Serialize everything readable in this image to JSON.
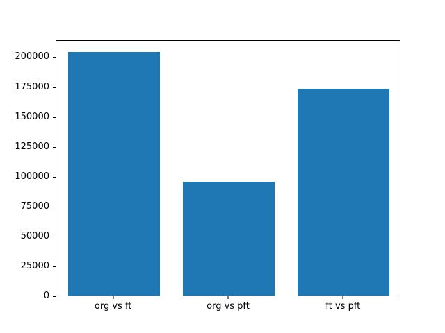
{
  "chart_data": {
    "type": "bar",
    "categories": [
      "org vs ft",
      "org vs pft",
      "ft vs pft"
    ],
    "values": [
      204000,
      95000,
      173000
    ],
    "title": "",
    "xlabel": "",
    "ylabel": "",
    "ylim": [
      0,
      214200
    ],
    "yticks": [
      0,
      25000,
      50000,
      75000,
      100000,
      125000,
      150000,
      175000,
      200000
    ],
    "bar_color": "#1f77b4",
    "bar_width_fraction": 0.8,
    "grid": false,
    "legend": false,
    "background": "#ffffff",
    "spine_color": "#000000"
  }
}
